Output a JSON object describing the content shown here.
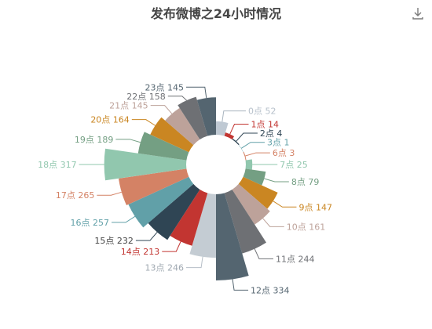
{
  "toolbar": {
    "save_icon": "download-icon"
  },
  "chart_data": {
    "type": "rose-pie",
    "title": "发布微博之24小时情况",
    "label_suffix": "点",
    "categories": [
      "0",
      "1",
      "2",
      "3",
      "6",
      "7",
      "8",
      "9",
      "10",
      "11",
      "12",
      "13",
      "14",
      "15",
      "16",
      "17",
      "18",
      "19",
      "20",
      "21",
      "22",
      "23"
    ],
    "values": [
      52,
      14,
      4,
      1,
      3,
      25,
      79,
      147,
      161,
      244,
      334,
      246,
      213,
      232,
      257,
      265,
      317,
      189,
      164,
      145,
      158,
      145
    ],
    "colors": [
      "#bfc9d3",
      "#c23531",
      "#2f4554",
      "#61a0a8",
      "#d48265",
      "#91c7ae",
      "#749f83",
      "#ca8622",
      "#bda29a",
      "#6e7074",
      "#546570",
      "#c4ccd3",
      "#c23531",
      "#2f4554",
      "#61a0a8",
      "#d48265",
      "#91c7ae",
      "#749f83",
      "#ca8622",
      "#bda29a",
      "#6e7074",
      "#546570"
    ]
  }
}
